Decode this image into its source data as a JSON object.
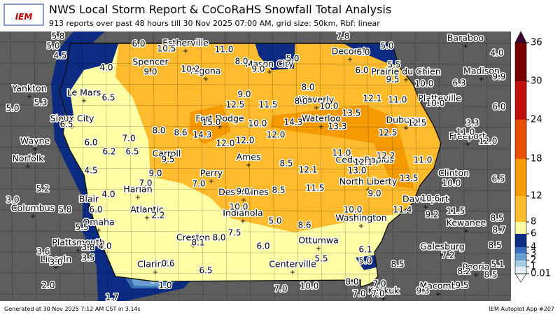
{
  "header": {
    "logo": "IEM",
    "title": "NWS Local Storm Report & CoCoRaHS Snowfall Total Analysis",
    "subtitle": "913 reports over past 48 hours till 30 Nov 2025 07:00 AM, grid size: 50km, Rbf: linear"
  },
  "colorbar": {
    "levels": [
      0.01,
      1,
      2,
      3,
      4,
      6,
      8,
      12,
      18,
      24,
      30,
      36
    ],
    "colors": [
      "#e4eef8",
      "#a6cbe3",
      "#6a9fd0",
      "#3a6fb8",
      "#0c2c84",
      "#ffffa6",
      "#fdbb2d",
      "#f59b00",
      "#e65000",
      "#c01010",
      "#7a0000"
    ],
    "over_color": "#3d0030",
    "under_color": "#ffffff"
  },
  "values": [
    "5.8",
    "5.0",
    "4.5",
    "4.0",
    "6.0",
    "10.5",
    "11.0",
    "8.0",
    "9.0",
    "5.0",
    "7.8",
    "6.0",
    "5.0",
    "4.0",
    "5.5",
    "6.0",
    "9.5",
    "10.0",
    "6.3",
    "9.9",
    "8.0",
    "9.0",
    "10.2",
    "6.5",
    "9.0",
    "12.5",
    "11.5",
    "8.0",
    "10.0",
    "12.1",
    "11.0",
    "10.0",
    "6.0",
    "5.0",
    "5.3",
    "6.5",
    "15.0",
    "14.3",
    "10.0",
    "14.3",
    "13.5",
    "13.3",
    "12.5",
    "12.5",
    "3.3",
    "11.0",
    "12.0",
    "8.0",
    "8.6",
    "12.0",
    "12.0",
    "12.0",
    "7.0",
    "6.0",
    "6.2",
    "6.5",
    "9.5",
    "11.0",
    "12.1",
    "12.2",
    "11.0",
    "13.0",
    "12.1",
    "8.5",
    "4.5",
    "9.0",
    "7.0",
    "7.0",
    "9.0",
    "8.5",
    "11.5",
    "13.5",
    "10.0",
    "6.5",
    "9.0",
    "5.2",
    "3.0",
    "4.0",
    "5.8",
    "6.0",
    "10.0",
    "10.6",
    "11.4",
    "9.2",
    "11.5",
    "2.2",
    "5.0",
    "8.6",
    "10.0",
    "5.5",
    "8.5",
    "8.7",
    "7.5",
    "8.0",
    "8.1",
    "6.0",
    "4.0",
    "3.8",
    "3.5",
    "3.6",
    "3.0",
    "6.1",
    "8.5",
    "7.2",
    "5.0",
    "5.5",
    "8.5",
    "0.6",
    "6.5",
    "5.1",
    "8.2",
    "8.5",
    "2.0",
    "1.0",
    "7.0",
    "10.0",
    "8.0",
    "7.0",
    "7.0",
    "7.0",
    "9.3",
    "9.5",
    "1.7"
  ],
  "cities": [
    "Baraboo",
    "Madison",
    "Yankton",
    "Spencer",
    "Algona",
    "Mason City",
    "Decorah",
    "Estherville",
    "Prairie du Chien",
    "Platteville",
    "Le Mars",
    "Sioux City",
    "Waverly",
    "Fort Dodge",
    "Waterloo",
    "Dubuque",
    "Freeport",
    "Wayne",
    "Norfolk",
    "Carroll",
    "Ames",
    "Cedar Rapids",
    "Clinton",
    "Perry",
    "Harlan",
    "North Liberty",
    "Des Moines",
    "Blair",
    "Davenport",
    "Columbus",
    "Atlantic",
    "Indianola",
    "Washington",
    "Kewanee",
    "Omaha",
    "Plattsmouth",
    "Creston",
    "Ottumwa",
    "Galesburg",
    "Lincoln",
    "Clarinda",
    "Centerville",
    "Peoria",
    "Macomb",
    "Keokuk"
  ],
  "footer": {
    "left": "Generated at 30 Nov 2025 7:12 AM CST in 3.14s",
    "right": "IEM Autoplot App #207"
  }
}
